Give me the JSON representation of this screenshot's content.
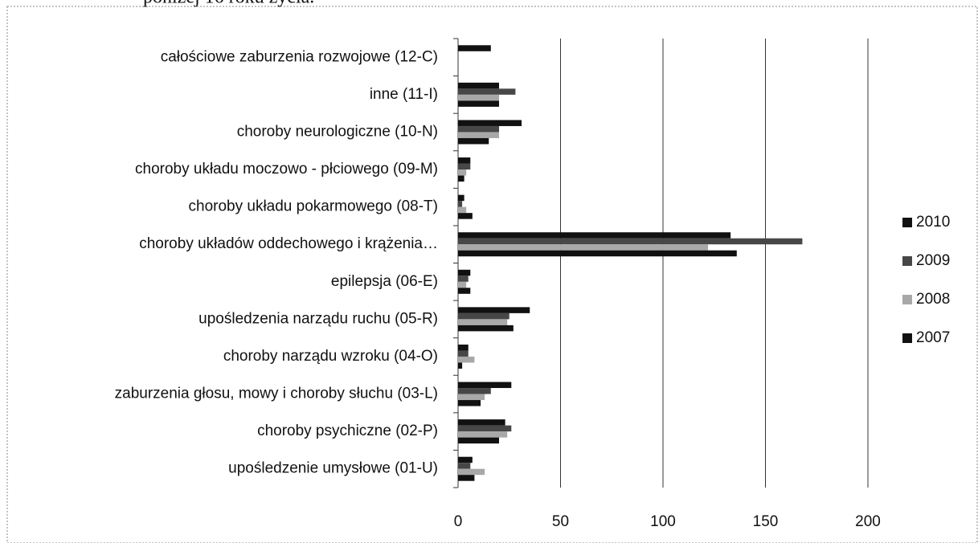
{
  "caption": "poniżej 16 roku życia.",
  "chart_data": {
    "type": "barh",
    "categories": [
      "całościowe zaburzenia rozwojowe (12-C)",
      "inne (11-I)",
      "choroby neurologiczne (10-N)",
      "choroby układu moczowo - płciowego (09-M)",
      "choroby układu pokarmowego (08-T)",
      "choroby układów oddechowego i krążenia…",
      "epilepsja (06-E)",
      "upośledzenia narządu ruchu (05-R)",
      "choroby narządu wzroku (04-O)",
      "zaburzenia głosu, mowy i choroby słuchu (03-L)",
      "choroby psychiczne (02-P)",
      "upośledzenie umysłowe (01-U)"
    ],
    "series": [
      {
        "name": "2010",
        "color": "#111111",
        "values": [
          16,
          20,
          31,
          6,
          3,
          133,
          6,
          35,
          5,
          26,
          23,
          7
        ]
      },
      {
        "name": "2009",
        "color": "#474747",
        "values": [
          null,
          28,
          20,
          6,
          2,
          168,
          5,
          25,
          5,
          16,
          26,
          6
        ]
      },
      {
        "name": "2008",
        "color": "#a8a8a8",
        "values": [
          null,
          20,
          20,
          4,
          4,
          122,
          4,
          24,
          8,
          13,
          24,
          13
        ]
      },
      {
        "name": "2007",
        "color": "#111111",
        "values": [
          null,
          20,
          15,
          3,
          7,
          136,
          6,
          27,
          2,
          11,
          20,
          8
        ]
      }
    ],
    "xlim": [
      0,
      200
    ],
    "xticks": [
      0,
      50,
      100,
      150,
      200
    ],
    "grid": true,
    "legend": "right"
  }
}
